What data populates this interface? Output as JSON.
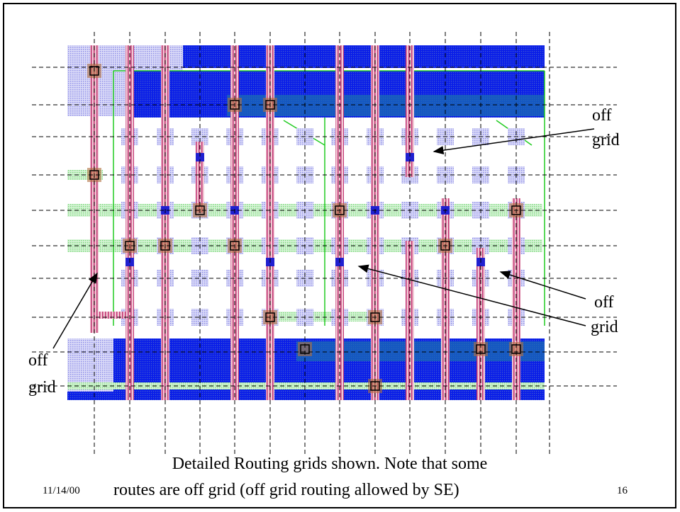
{
  "slide": {
    "annotations": [
      {
        "lines": [
          "off",
          "grid"
        ]
      },
      {
        "lines": [
          "off",
          "grid"
        ]
      },
      {
        "lines": [
          "off",
          "grid"
        ]
      }
    ],
    "caption": [
      "Detailed Routing grids shown. Note that some",
      "routes are off grid (off grid routing allowed by SE)"
    ],
    "date": "11/14/00",
    "page_number": "16"
  }
}
